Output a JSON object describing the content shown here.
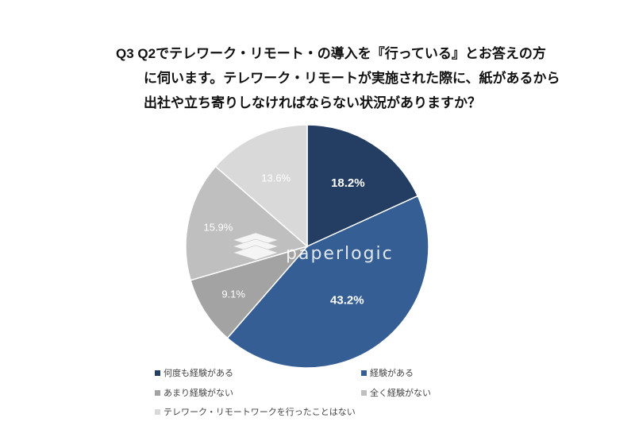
{
  "title_lines": [
    "Q3 Q2でテレワーク・リモート・の導入を『行っている』とお答えの方",
    "に伺います。テレワーク・リモートが実施された際に、紙があるから",
    "出社や立ち寄りしなければならない状況がありますか？"
  ],
  "watermark": "paperlogic",
  "chart_data": {
    "type": "pie",
    "title": "Q3 Q2でテレワーク・リモート・の導入を『行っている』とお答えの方に伺います。テレワーク・リモートが実施された際に、紙があるから出社や立ち寄りしなければならない状況がありますか？",
    "start": "top, clockwise",
    "legend_position": "bottom",
    "slices": [
      {
        "label": "何度も経験がある",
        "value": 18.2,
        "display": "18.2%",
        "color": "#243e63",
        "text_color": "#ffffff",
        "bold": true
      },
      {
        "label": "経験がある",
        "value": 43.2,
        "display": "43.2%",
        "color": "#355f94",
        "text_color": "#ffffff",
        "bold": true
      },
      {
        "label": "あまり経験がない",
        "value": 9.1,
        "display": "9.1%",
        "color": "#a3a3a3",
        "text_color": "#ffffff",
        "bold": false
      },
      {
        "label": "全く経験がない",
        "value": 15.9,
        "display": "15.9%",
        "color": "#bfbfbf",
        "text_color": "#ffffff",
        "bold": false
      },
      {
        "label": "テレワーク・リモートワークを行ったことはない",
        "value": 13.6,
        "display": "13.6%",
        "color": "#d9d9d9",
        "text_color": "#ffffff",
        "bold": false
      }
    ]
  }
}
